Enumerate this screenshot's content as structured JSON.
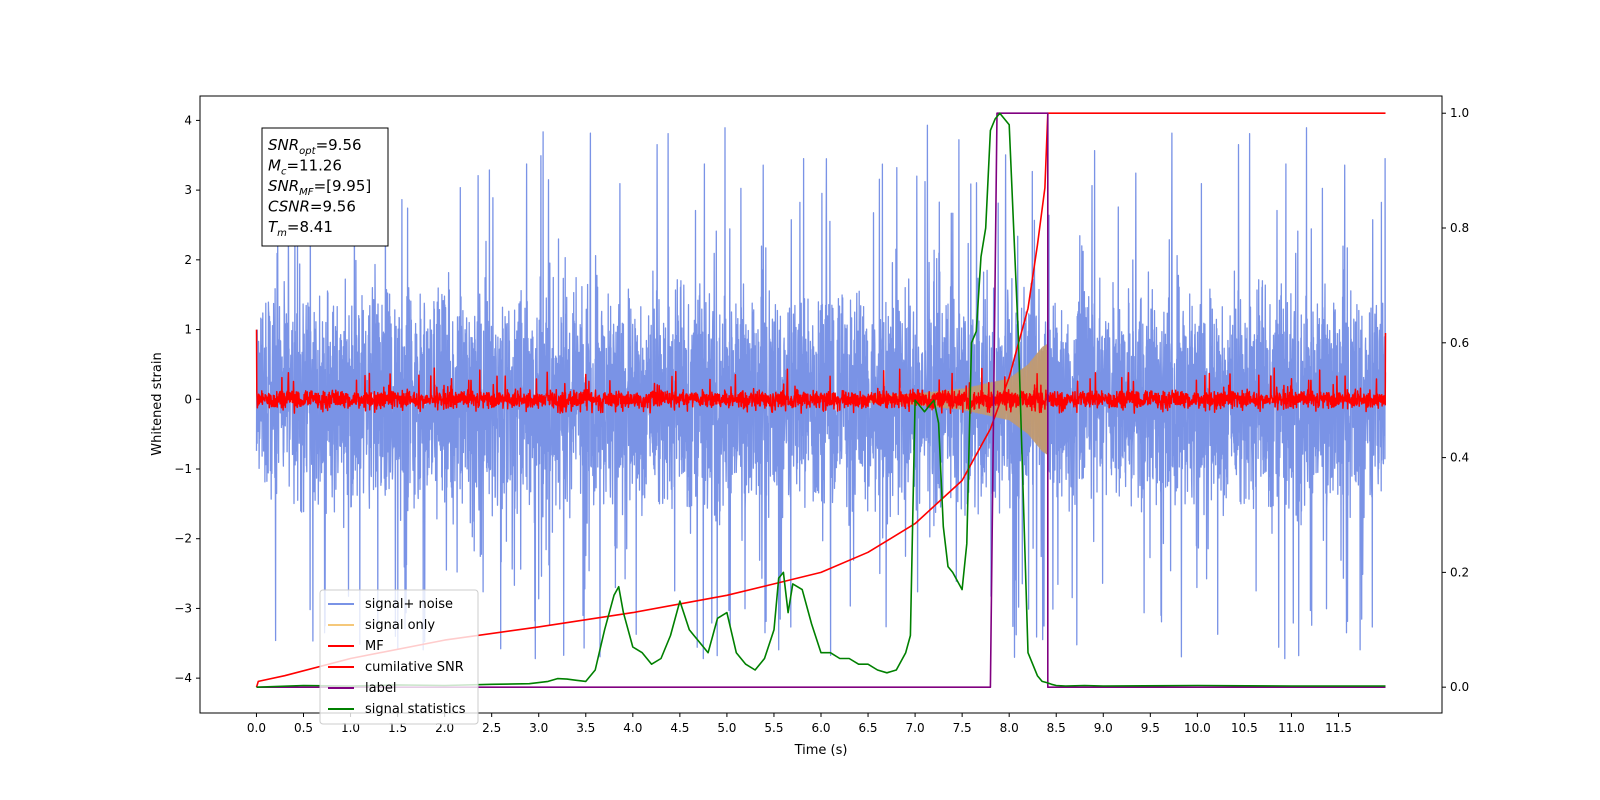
{
  "chart_data": {
    "type": "line",
    "xlabel": "Time (s)",
    "ylabel": "Whitened strain",
    "xlim": [
      -0.6,
      12.6
    ],
    "ylim": [
      -4.5,
      4.35
    ],
    "y2lim": [
      -0.045,
      1.03
    ],
    "x_ticks": [
      "0.0",
      "0.5",
      "1.0",
      "1.5",
      "2.0",
      "2.5",
      "3.0",
      "3.5",
      "4.0",
      "4.5",
      "5.0",
      "5.5",
      "6.0",
      "6.5",
      "7.0",
      "7.5",
      "8.0",
      "8.5",
      "9.0",
      "9.5",
      "10.0",
      "10.5",
      "11.0",
      "11.5"
    ],
    "y_ticks": [
      "4",
      "3",
      "2",
      "1",
      "0",
      "−1",
      "−2",
      "−3",
      "−4"
    ],
    "y2_ticks": [
      "1.0",
      "0.8",
      "0.6",
      "0.4",
      "0.2",
      "0.0"
    ],
    "grid": false,
    "legend_position": "lower-left",
    "annotation": {
      "lines": [
        {
          "label": "SNR",
          "sub": "opt",
          "value": "=9.56"
        },
        {
          "label": "M",
          "sub": "c",
          "value": "=11.26"
        },
        {
          "label": "SNR",
          "sub": "MF",
          "value": "=[9.95]"
        },
        {
          "label": "CSNR",
          "sub": "",
          "value": "=9.56"
        },
        {
          "label": "T",
          "sub": "m",
          "value": "=8.41"
        }
      ]
    },
    "series": [
      {
        "name": "signal+ noise",
        "color": "#7a93e6",
        "axis": "left",
        "kind": "noise",
        "x_range": [
          0.0,
          12.0
        ],
        "envelope": {
          "upper_typical": 1.8,
          "lower_typical": -1.9,
          "upper_max": 3.95,
          "lower_min": -3.75
        }
      },
      {
        "name": "signal only",
        "color": "#f5c87a",
        "axis": "left",
        "kind": "chirp",
        "x": [
          6.5,
          7.0,
          7.5,
          8.0,
          8.2,
          8.35,
          8.41
        ],
        "amplitude": [
          0.05,
          0.08,
          0.15,
          0.3,
          0.5,
          0.75,
          0.8
        ]
      },
      {
        "name": "MF",
        "color": "#ff0000",
        "axis": "left",
        "kind": "noise",
        "x_range": [
          0.0,
          12.0
        ],
        "envelope": {
          "upper_typical": 0.15,
          "lower_typical": -0.15,
          "upper_max": 0.45,
          "lower_min": -0.2
        },
        "edge_values": [
          1.0,
          0.95
        ]
      },
      {
        "name": "cumilative SNR",
        "color": "#ff0000",
        "axis": "right",
        "x": [
          0.0,
          0.02,
          0.3,
          1.0,
          2.0,
          3.0,
          4.0,
          5.0,
          5.5,
          6.0,
          6.5,
          7.0,
          7.5,
          7.8,
          8.0,
          8.2,
          8.3,
          8.38,
          8.41,
          8.43,
          12.0
        ],
        "values": [
          0.0,
          0.01,
          0.02,
          0.05,
          0.082,
          0.105,
          0.13,
          0.16,
          0.18,
          0.2,
          0.235,
          0.285,
          0.36,
          0.45,
          0.54,
          0.66,
          0.77,
          0.87,
          1.0,
          1.0,
          1.0
        ]
      },
      {
        "name": "label",
        "color": "#800080",
        "axis": "right",
        "x": [
          0.0,
          7.8,
          7.8,
          7.87,
          8.35,
          8.41,
          8.41,
          12.0
        ],
        "values": [
          0.0,
          0.0,
          0.0,
          1.0,
          1.0,
          1.0,
          0.0,
          0.0
        ]
      },
      {
        "name": "signal statistics",
        "color": "#008000",
        "axis": "right",
        "x": [
          0.0,
          0.5,
          1.0,
          1.5,
          2.0,
          2.5,
          2.9,
          3.1,
          3.2,
          3.3,
          3.4,
          3.5,
          3.6,
          3.7,
          3.8,
          3.85,
          3.9,
          4.0,
          4.1,
          4.2,
          4.3,
          4.4,
          4.5,
          4.6,
          4.7,
          4.8,
          4.9,
          5.0,
          5.1,
          5.2,
          5.3,
          5.4,
          5.5,
          5.55,
          5.6,
          5.65,
          5.7,
          5.8,
          5.9,
          6.0,
          6.1,
          6.2,
          6.3,
          6.4,
          6.5,
          6.6,
          6.7,
          6.8,
          6.9,
          6.95,
          7.0,
          7.05,
          7.1,
          7.15,
          7.2,
          7.25,
          7.3,
          7.35,
          7.4,
          7.5,
          7.55,
          7.6,
          7.65,
          7.7,
          7.75,
          7.8,
          7.85,
          7.9,
          8.0,
          8.1,
          8.2,
          8.3,
          8.35,
          8.4,
          8.45,
          8.5,
          8.6,
          8.8,
          9.0,
          10.0,
          11.0,
          12.0
        ],
        "values": [
          0.0,
          0.003,
          0.002,
          0.004,
          0.003,
          0.005,
          0.006,
          0.01,
          0.015,
          0.014,
          0.012,
          0.01,
          0.03,
          0.1,
          0.16,
          0.175,
          0.13,
          0.07,
          0.06,
          0.04,
          0.05,
          0.09,
          0.15,
          0.1,
          0.08,
          0.06,
          0.12,
          0.13,
          0.06,
          0.04,
          0.03,
          0.05,
          0.1,
          0.19,
          0.2,
          0.13,
          0.18,
          0.17,
          0.11,
          0.06,
          0.06,
          0.05,
          0.05,
          0.04,
          0.04,
          0.03,
          0.025,
          0.03,
          0.06,
          0.09,
          0.5,
          0.49,
          0.48,
          0.49,
          0.5,
          0.46,
          0.28,
          0.21,
          0.2,
          0.17,
          0.25,
          0.6,
          0.62,
          0.75,
          0.8,
          0.97,
          0.99,
          1.0,
          0.98,
          0.6,
          0.06,
          0.02,
          0.01,
          0.008,
          0.005,
          0.003,
          0.002,
          0.003,
          0.002,
          0.003,
          0.002,
          0.002
        ]
      }
    ]
  }
}
